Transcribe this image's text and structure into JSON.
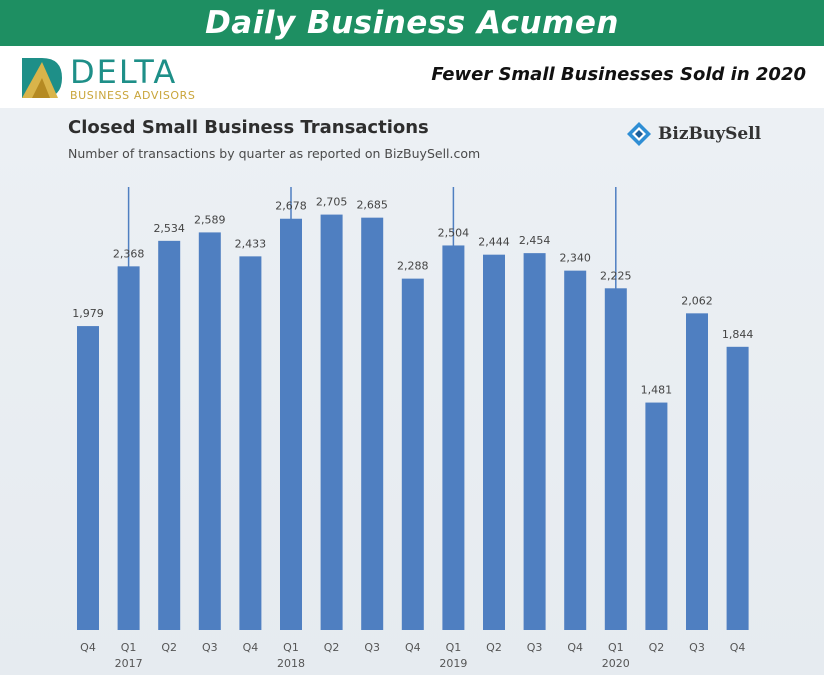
{
  "header": {
    "banner_title": "Daily Business Acumen",
    "logo_name": "DELTA",
    "logo_tagline": "BUSINESS ADVISORS",
    "headline": "Fewer Small Businesses Sold in 2020"
  },
  "chart_header": {
    "title": "Closed Small Business Transactions",
    "subtitle": "Number of transactions by quarter as reported on BizBuySell.com",
    "source_logo": "BizBuySell"
  },
  "colors": {
    "banner": "#1e8f62",
    "bar": "#4f7fc1",
    "logo_teal": "#1e8f88",
    "logo_gold": "#c9a53a"
  },
  "chart_data": {
    "type": "bar",
    "title": "Closed Small Business Transactions",
    "subtitle": "Number of transactions by quarter as reported on BizBuySell.com",
    "categories": [
      "Q4",
      "Q1",
      "Q2",
      "Q3",
      "Q4",
      "Q1",
      "Q2",
      "Q3",
      "Q4",
      "Q1",
      "Q2",
      "Q3",
      "Q4",
      "Q1",
      "Q2",
      "Q3",
      "Q4"
    ],
    "year_labels": [
      "",
      "2017",
      "",
      "",
      "",
      "2018",
      "",
      "",
      "",
      "2019",
      "",
      "",
      "",
      "2020",
      "",
      "",
      ""
    ],
    "values": [
      1979,
      2368,
      2534,
      2589,
      2433,
      2678,
      2705,
      2685,
      2288,
      2504,
      2444,
      2454,
      2340,
      2225,
      1481,
      2062,
      1844
    ],
    "value_labels": [
      "1,979",
      "2,368",
      "2,534",
      "2,589",
      "2,433",
      "2,678",
      "2,705",
      "2,685",
      "2,288",
      "2,504",
      "2,444",
      "2,454",
      "2,340",
      "2,225",
      "1,481",
      "2,062",
      "1,844"
    ],
    "year_divider_categories": [
      1,
      5,
      9,
      13
    ],
    "ylim": [
      0,
      2800
    ],
    "xlabel": "",
    "ylabel": "",
    "grid": false,
    "legend": "none"
  }
}
